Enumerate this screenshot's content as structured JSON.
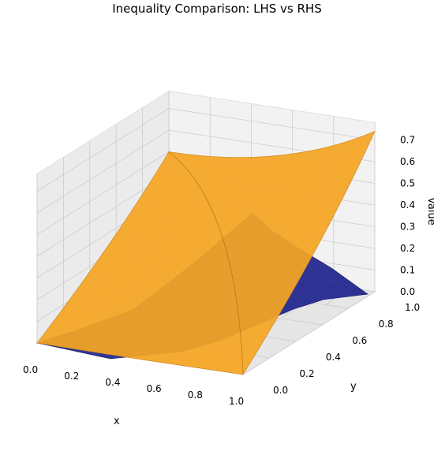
{
  "chart_data": {
    "type": "surface3d",
    "title": "Inequality Comparison: LHS vs RHS",
    "xlabel": "x",
    "ylabel": "y",
    "zlabel": "Value",
    "xlim": [
      0,
      1
    ],
    "ylim": [
      0,
      1
    ],
    "zlim": [
      0,
      0.7
    ],
    "x_ticks": [
      "0.0",
      "0.2",
      "0.4",
      "0.6",
      "0.8",
      "1.0"
    ],
    "y_ticks": [
      "0.0",
      "0.2",
      "0.4",
      "0.6",
      "0.8",
      "1.0"
    ],
    "z_ticks": [
      "0.0",
      "0.1",
      "0.2",
      "0.3",
      "0.4",
      "0.5",
      "0.6",
      "0.7"
    ],
    "grid": true,
    "series": [
      {
        "color": "#f5a623",
        "x": [
          0,
          1
        ],
        "y": [
          0,
          1
        ],
        "z": [
          [
            0.0,
            0.0
          ],
          [
            0.5,
            0.74
          ]
        ]
      },
      {
        "color": "#1a1f8a",
        "x": [
          0,
          1
        ],
        "y": [
          0,
          1
        ],
        "z": [
          [
            0.0,
            0.0
          ],
          [
            0.0,
            0.0
          ]
        ]
      }
    ]
  }
}
